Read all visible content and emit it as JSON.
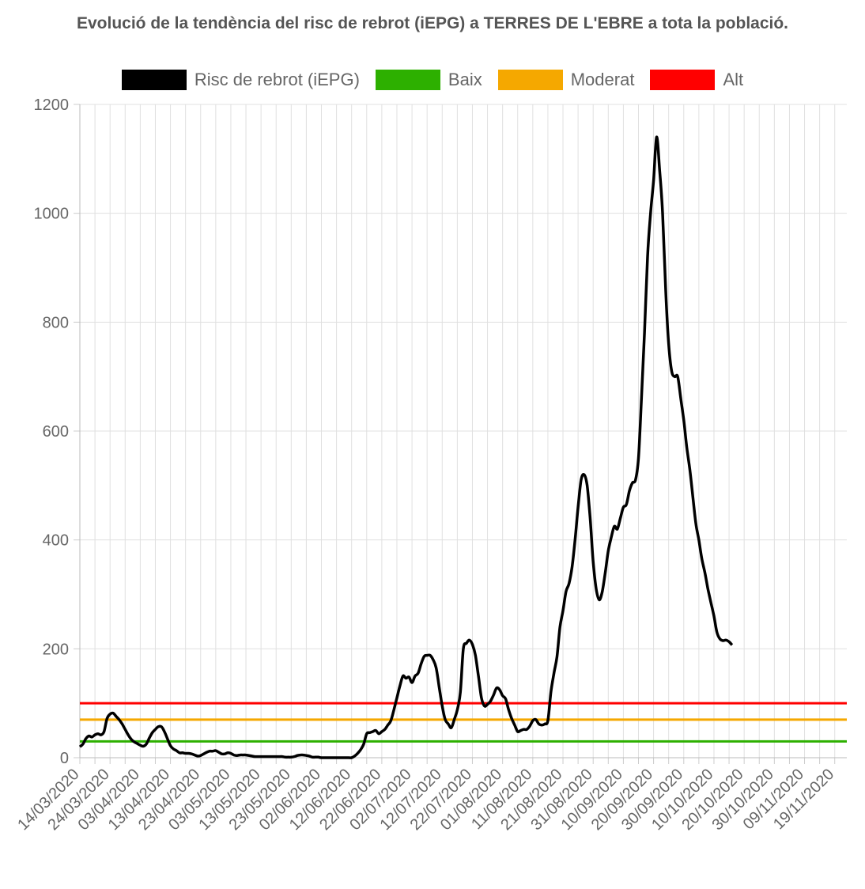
{
  "chart_data": {
    "type": "line",
    "title": "Evolució de la tendència del risc de rebrot (iEPG) a TERRES DE L'EBRE a tota la població.",
    "xlabel": "",
    "ylabel": "",
    "ylim": [
      0,
      1200
    ],
    "yticks": [
      0,
      200,
      400,
      600,
      800,
      1000,
      1200
    ],
    "grid": true,
    "legend_position": "top",
    "x_start": "14/03/2020",
    "x_end": "23/11/2020",
    "x_tick_labels": [
      "14/03/2020",
      "24/03/2020",
      "03/04/2020",
      "13/04/2020",
      "23/04/2020",
      "03/05/2020",
      "13/05/2020",
      "23/05/2020",
      "02/06/2020",
      "12/06/2020",
      "22/06/2020",
      "02/07/2020",
      "12/07/2020",
      "22/07/2020",
      "01/08/2020",
      "11/08/2020",
      "21/08/2020",
      "31/08/2020",
      "10/09/2020",
      "20/09/2020",
      "30/09/2020",
      "10/10/2020",
      "20/10/2020",
      "30/10/2020",
      "09/11/2020",
      "19/11/2020"
    ],
    "series": [
      {
        "name": "Risc de rebrot (iEPG)",
        "color": "#000000",
        "points": [
          [
            "14/03/2020",
            20
          ],
          [
            "15/03/2020",
            25
          ],
          [
            "16/03/2020",
            35
          ],
          [
            "17/03/2020",
            40
          ],
          [
            "18/03/2020",
            38
          ],
          [
            "19/03/2020",
            42
          ],
          [
            "20/03/2020",
            44
          ],
          [
            "21/03/2020",
            42
          ],
          [
            "22/03/2020",
            48
          ],
          [
            "23/03/2020",
            72
          ],
          [
            "24/03/2020",
            80
          ],
          [
            "25/03/2020",
            82
          ],
          [
            "26/03/2020",
            76
          ],
          [
            "27/03/2020",
            70
          ],
          [
            "28/03/2020",
            62
          ],
          [
            "29/03/2020",
            52
          ],
          [
            "30/03/2020",
            42
          ],
          [
            "31/03/2020",
            34
          ],
          [
            "01/04/2020",
            29
          ],
          [
            "02/04/2020",
            26
          ],
          [
            "03/04/2020",
            23
          ],
          [
            "04/04/2020",
            21
          ],
          [
            "05/04/2020",
            25
          ],
          [
            "06/04/2020",
            36
          ],
          [
            "07/04/2020",
            46
          ],
          [
            "08/04/2020",
            52
          ],
          [
            "09/04/2020",
            57
          ],
          [
            "10/04/2020",
            57
          ],
          [
            "11/04/2020",
            48
          ],
          [
            "12/04/2020",
            35
          ],
          [
            "13/04/2020",
            22
          ],
          [
            "14/04/2020",
            16
          ],
          [
            "15/04/2020",
            13
          ],
          [
            "16/04/2020",
            9
          ],
          [
            "17/04/2020",
            9
          ],
          [
            "18/04/2020",
            8
          ],
          [
            "19/04/2020",
            8
          ],
          [
            "20/04/2020",
            7
          ],
          [
            "21/04/2020",
            5
          ],
          [
            "22/04/2020",
            3
          ],
          [
            "23/04/2020",
            4
          ],
          [
            "24/04/2020",
            7
          ],
          [
            "25/04/2020",
            10
          ],
          [
            "26/04/2020",
            12
          ],
          [
            "27/04/2020",
            12
          ],
          [
            "28/04/2020",
            13
          ],
          [
            "29/04/2020",
            10
          ],
          [
            "30/04/2020",
            7
          ],
          [
            "01/05/2020",
            7
          ],
          [
            "02/05/2020",
            9
          ],
          [
            "03/05/2020",
            8
          ],
          [
            "04/05/2020",
            5
          ],
          [
            "05/05/2020",
            4
          ],
          [
            "06/05/2020",
            5
          ],
          [
            "07/05/2020",
            5
          ],
          [
            "08/05/2020",
            5
          ],
          [
            "09/05/2020",
            4
          ],
          [
            "10/05/2020",
            3
          ],
          [
            "11/05/2020",
            2
          ],
          [
            "12/05/2020",
            2
          ],
          [
            "13/05/2020",
            2
          ],
          [
            "14/05/2020",
            2
          ],
          [
            "15/05/2020",
            2
          ],
          [
            "16/05/2020",
            2
          ],
          [
            "17/05/2020",
            2
          ],
          [
            "18/05/2020",
            2
          ],
          [
            "19/05/2020",
            2
          ],
          [
            "20/05/2020",
            2
          ],
          [
            "21/05/2020",
            1
          ],
          [
            "22/05/2020",
            1
          ],
          [
            "23/05/2020",
            1
          ],
          [
            "24/05/2020",
            2
          ],
          [
            "25/05/2020",
            4
          ],
          [
            "26/05/2020",
            5
          ],
          [
            "27/05/2020",
            5
          ],
          [
            "28/05/2020",
            4
          ],
          [
            "29/05/2020",
            3
          ],
          [
            "30/05/2020",
            1
          ],
          [
            "31/05/2020",
            1
          ],
          [
            "01/06/2020",
            1
          ],
          [
            "02/06/2020",
            0
          ],
          [
            "05/06/2020",
            0
          ],
          [
            "08/06/2020",
            0
          ],
          [
            "11/06/2020",
            0
          ],
          [
            "12/06/2020",
            0
          ],
          [
            "13/06/2020",
            3
          ],
          [
            "14/06/2020",
            8
          ],
          [
            "15/06/2020",
            15
          ],
          [
            "16/06/2020",
            25
          ],
          [
            "17/06/2020",
            44
          ],
          [
            "18/06/2020",
            46
          ],
          [
            "19/06/2020",
            48
          ],
          [
            "20/06/2020",
            50
          ],
          [
            "21/06/2020",
            44
          ],
          [
            "22/06/2020",
            48
          ],
          [
            "23/06/2020",
            52
          ],
          [
            "24/06/2020",
            60
          ],
          [
            "25/06/2020",
            68
          ],
          [
            "26/06/2020",
            88
          ],
          [
            "27/06/2020",
            110
          ],
          [
            "28/06/2020",
            132
          ],
          [
            "29/06/2020",
            150
          ],
          [
            "30/06/2020",
            146
          ],
          [
            "01/07/2020",
            148
          ],
          [
            "02/07/2020",
            138
          ],
          [
            "03/07/2020",
            150
          ],
          [
            "04/07/2020",
            155
          ],
          [
            "05/07/2020",
            172
          ],
          [
            "06/07/2020",
            186
          ],
          [
            "07/07/2020",
            188
          ],
          [
            "08/07/2020",
            188
          ],
          [
            "09/07/2020",
            180
          ],
          [
            "10/07/2020",
            165
          ],
          [
            "11/07/2020",
            130
          ],
          [
            "12/07/2020",
            95
          ],
          [
            "13/07/2020",
            70
          ],
          [
            "14/07/2020",
            62
          ],
          [
            "15/07/2020",
            55
          ],
          [
            "16/07/2020",
            70
          ],
          [
            "17/07/2020",
            88
          ],
          [
            "18/07/2020",
            120
          ],
          [
            "19/07/2020",
            200
          ],
          [
            "20/07/2020",
            210
          ],
          [
            "21/07/2020",
            216
          ],
          [
            "22/07/2020",
            208
          ],
          [
            "23/07/2020",
            188
          ],
          [
            "24/07/2020",
            150
          ],
          [
            "25/07/2020",
            110
          ],
          [
            "26/07/2020",
            95
          ],
          [
            "27/07/2020",
            98
          ],
          [
            "28/07/2020",
            104
          ],
          [
            "29/07/2020",
            115
          ],
          [
            "30/07/2020",
            128
          ],
          [
            "31/07/2020",
            125
          ],
          [
            "01/08/2020",
            114
          ],
          [
            "02/08/2020",
            108
          ],
          [
            "03/08/2020",
            88
          ],
          [
            "04/08/2020",
            72
          ],
          [
            "05/08/2020",
            60
          ],
          [
            "06/08/2020",
            48
          ],
          [
            "07/08/2020",
            50
          ],
          [
            "08/08/2020",
            52
          ],
          [
            "09/08/2020",
            52
          ],
          [
            "10/08/2020",
            58
          ],
          [
            "11/08/2020",
            68
          ],
          [
            "12/08/2020",
            70
          ],
          [
            "13/08/2020",
            62
          ],
          [
            "14/08/2020",
            60
          ],
          [
            "15/08/2020",
            62
          ],
          [
            "16/08/2020",
            68
          ],
          [
            "17/08/2020",
            120
          ],
          [
            "18/08/2020",
            155
          ],
          [
            "19/08/2020",
            185
          ],
          [
            "20/08/2020",
            240
          ],
          [
            "21/08/2020",
            270
          ],
          [
            "22/08/2020",
            305
          ],
          [
            "23/08/2020",
            320
          ],
          [
            "24/08/2020",
            350
          ],
          [
            "25/08/2020",
            400
          ],
          [
            "26/08/2020",
            460
          ],
          [
            "27/08/2020",
            510
          ],
          [
            "28/08/2020",
            520
          ],
          [
            "29/08/2020",
            500
          ],
          [
            "30/08/2020",
            440
          ],
          [
            "31/08/2020",
            360
          ],
          [
            "01/09/2020",
            310
          ],
          [
            "02/09/2020",
            290
          ],
          [
            "03/09/2020",
            305
          ],
          [
            "04/09/2020",
            340
          ],
          [
            "05/09/2020",
            380
          ],
          [
            "06/09/2020",
            405
          ],
          [
            "07/09/2020",
            425
          ],
          [
            "08/09/2020",
            420
          ],
          [
            "09/09/2020",
            440
          ],
          [
            "10/09/2020",
            460
          ],
          [
            "11/09/2020",
            465
          ],
          [
            "12/09/2020",
            490
          ],
          [
            "13/09/2020",
            505
          ],
          [
            "14/09/2020",
            510
          ],
          [
            "15/09/2020",
            550
          ],
          [
            "16/09/2020",
            660
          ],
          [
            "17/09/2020",
            780
          ],
          [
            "18/09/2020",
            920
          ],
          [
            "19/09/2020",
            1000
          ],
          [
            "20/09/2020",
            1060
          ],
          [
            "21/09/2020",
            1140
          ],
          [
            "22/09/2020",
            1080
          ],
          [
            "23/09/2020",
            1000
          ],
          [
            "24/09/2020",
            860
          ],
          [
            "25/09/2020",
            760
          ],
          [
            "26/09/2020",
            710
          ],
          [
            "27/09/2020",
            700
          ],
          [
            "28/09/2020",
            700
          ],
          [
            "29/09/2020",
            660
          ],
          [
            "30/09/2020",
            620
          ],
          [
            "01/10/2020",
            570
          ],
          [
            "02/10/2020",
            530
          ],
          [
            "03/10/2020",
            480
          ],
          [
            "04/10/2020",
            430
          ],
          [
            "05/10/2020",
            400
          ],
          [
            "06/10/2020",
            365
          ],
          [
            "07/10/2020",
            340
          ],
          [
            "08/10/2020",
            310
          ],
          [
            "09/10/2020",
            285
          ],
          [
            "10/10/2020",
            260
          ],
          [
            "11/10/2020",
            230
          ],
          [
            "12/10/2020",
            218
          ],
          [
            "13/10/2020",
            215
          ],
          [
            "14/10/2020",
            216
          ],
          [
            "15/10/2020",
            213
          ],
          [
            "16/10/2020",
            207
          ]
        ]
      },
      {
        "name": "Baix",
        "color": "#2db000",
        "constant": 30
      },
      {
        "name": "Moderat",
        "color": "#f5a800",
        "constant": 70
      },
      {
        "name": "Alt",
        "color": "#ff0000",
        "constant": 100
      }
    ]
  }
}
